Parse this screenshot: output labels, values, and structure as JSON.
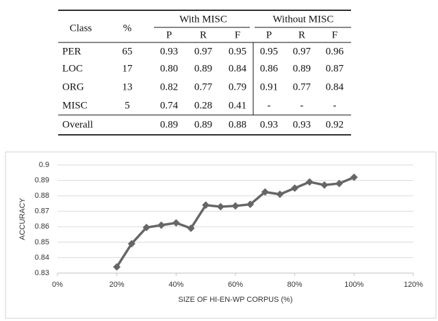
{
  "table": {
    "columns": [
      "Class",
      "%"
    ],
    "groups": [
      "With MISC",
      "Without MISC"
    ],
    "subheaders": [
      "P",
      "R",
      "F",
      "P",
      "R",
      "F"
    ],
    "rows": [
      [
        "PER",
        "65",
        "0.93",
        "0.97",
        "0.95",
        "0.95",
        "0.97",
        "0.96"
      ],
      [
        "LOC",
        "17",
        "0.80",
        "0.89",
        "0.84",
        "0.86",
        "0.89",
        "0.87"
      ],
      [
        "ORG",
        "13",
        "0.82",
        "0.77",
        "0.79",
        "0.91",
        "0.77",
        "0.84"
      ],
      [
        "MISC",
        "5",
        "0.74",
        "0.28",
        "0.41",
        "-",
        "-",
        "-"
      ],
      [
        "Overall",
        null,
        "0.89",
        "0.89",
        "0.88",
        "0.93",
        "0.93",
        "0.92"
      ]
    ]
  },
  "chart_data": {
    "type": "line",
    "x_label": "SIZE OF HI-EN-WP CORPUS (%)",
    "y_label": "ACCURACY",
    "x": [
      20,
      25,
      30,
      35,
      40,
      45,
      50,
      55,
      60,
      65,
      70,
      75,
      80,
      85,
      90,
      95,
      100
    ],
    "series": [
      {
        "color": "#666666",
        "marker": "diamond",
        "values": [
          0.834,
          0.849,
          0.8595,
          0.861,
          0.8625,
          0.859,
          0.874,
          0.873,
          0.8735,
          0.8745,
          0.8825,
          0.881,
          0.885,
          0.889,
          0.887,
          0.888,
          0.892
        ]
      }
    ],
    "xlim": [
      0,
      120
    ],
    "xticks": [
      {
        "value": 0,
        "label": "0%"
      },
      {
        "value": 20,
        "label": "20%"
      },
      {
        "value": 40,
        "label": "40%"
      },
      {
        "value": 60,
        "label": "60%"
      },
      {
        "value": 80,
        "label": "80%"
      },
      {
        "value": 100,
        "label": "100%"
      },
      {
        "value": 120,
        "label": "120%"
      }
    ],
    "ylim": [
      0.83,
      0.9
    ],
    "yticks": [
      0.83,
      0.84,
      0.85,
      0.86,
      0.87,
      0.88,
      0.89,
      0.9
    ],
    "grid": true
  }
}
